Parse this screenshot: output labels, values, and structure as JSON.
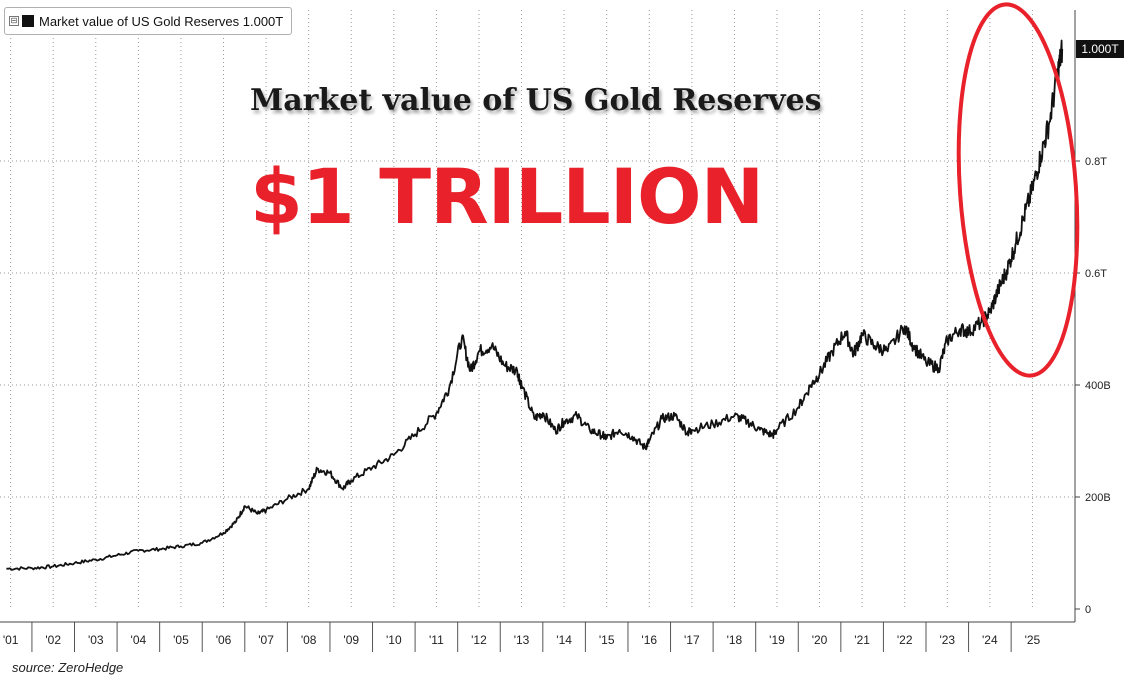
{
  "legend": {
    "toggle": "⊟",
    "label": "Market value of US Gold Reserves 1.000T"
  },
  "annotation": {
    "headline": "Market value of US Gold Reserves",
    "big_text": "$1 TRILLION",
    "big_text_color": "#e8212b",
    "circle_color": "#e8212b"
  },
  "source": "source: ZeroHedge",
  "chart_data": {
    "type": "line",
    "series": [
      {
        "name": "Market value of US Gold Reserves",
        "color": "#111111",
        "x": [
          2000.9,
          2001.5,
          2002.0,
          2002.5,
          2003.0,
          2003.5,
          2004.0,
          2004.5,
          2005.0,
          2005.5,
          2006.0,
          2006.3,
          2006.5,
          2006.8,
          2007.0,
          2007.5,
          2008.0,
          2008.2,
          2008.5,
          2008.8,
          2009.0,
          2009.5,
          2010.0,
          2010.5,
          2011.0,
          2011.3,
          2011.6,
          2011.8,
          2012.0,
          2012.3,
          2012.6,
          2012.9,
          2013.0,
          2013.3,
          2013.5,
          2013.8,
          2014.0,
          2014.3,
          2014.6,
          2014.9,
          2015.0,
          2015.3,
          2015.6,
          2015.9,
          2016.0,
          2016.3,
          2016.6,
          2016.9,
          2017.0,
          2017.5,
          2018.0,
          2018.3,
          2018.6,
          2018.9,
          2019.0,
          2019.5,
          2019.8,
          2020.0,
          2020.3,
          2020.6,
          2020.8,
          2021.0,
          2021.3,
          2021.6,
          2022.0,
          2022.2,
          2022.5,
          2022.8,
          2023.0,
          2023.3,
          2023.5,
          2023.8,
          2024.0,
          2024.2,
          2024.4,
          2024.6,
          2024.8,
          2025.0,
          2025.2,
          2025.4,
          2025.6,
          2025.7
        ],
        "values": [
          72,
          73,
          76,
          82,
          88,
          96,
          104,
          107,
          112,
          118,
          136,
          157,
          184,
          170,
          176,
          197,
          215,
          250,
          243,
          215,
          230,
          253,
          275,
          312,
          350,
          395,
          485,
          425,
          460,
          470,
          435,
          425,
          400,
          340,
          350,
          318,
          335,
          345,
          320,
          310,
          305,
          320,
          308,
          288,
          300,
          340,
          345,
          315,
          320,
          330,
          345,
          335,
          320,
          310,
          320,
          360,
          400,
          420,
          460,
          495,
          455,
          490,
          470,
          460,
          505,
          470,
          440,
          430,
          480,
          500,
          495,
          512,
          530,
          570,
          605,
          650,
          700,
          750,
          810,
          870,
          960,
          1000
        ]
      }
    ],
    "x_tick_labels": [
      "'01",
      "'02",
      "'03",
      "'04",
      "'05",
      "'06",
      "'07",
      "'08",
      "'09",
      "'10",
      "'11",
      "'12",
      "'13",
      "'14",
      "'15",
      "'16",
      "'17",
      "'18",
      "'19",
      "'20",
      "'21",
      "'22",
      "'23",
      "'24",
      "'25"
    ],
    "x_ticks": [
      2001,
      2002,
      2003,
      2004,
      2005,
      2006,
      2007,
      2008,
      2009,
      2010,
      2011,
      2012,
      2013,
      2014,
      2015,
      2016,
      2017,
      2018,
      2019,
      2020,
      2021,
      2022,
      2023,
      2024,
      2025
    ],
    "y_ticks": [
      0,
      200,
      400,
      600,
      800
    ],
    "y_tick_labels": [
      "0",
      "200B",
      "400B",
      "0.6T",
      "0.8T"
    ],
    "xlim": [
      2000.75,
      2026.0
    ],
    "ylim": [
      0,
      1000
    ],
    "last_value_label": "1.000T",
    "grid": true,
    "legend_position": "top-left"
  }
}
